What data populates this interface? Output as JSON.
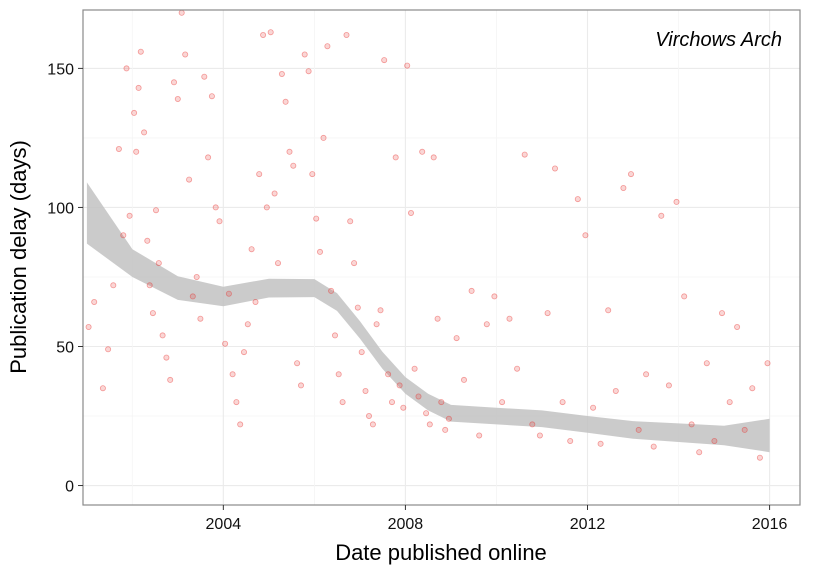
{
  "chart_data": {
    "type": "scatter",
    "title": "",
    "annotation": "Virchows Arch",
    "xlabel": "Date published online",
    "ylabel": "Publication delay (days)",
    "xlim": [
      "2000-12-01",
      "2016-09-01"
    ],
    "ylim": [
      -7,
      171
    ],
    "x_ticks": [
      {
        "date": "2004-01-01",
        "label": "2004"
      },
      {
        "date": "2008-01-01",
        "label": "2008"
      },
      {
        "date": "2012-01-01",
        "label": "2012"
      },
      {
        "date": "2016-01-01",
        "label": "2016"
      }
    ],
    "y_ticks": [
      0,
      50,
      100,
      150
    ],
    "grid": true,
    "colors": {
      "points": "#e8302f",
      "smooth_band": "#c2c2c2",
      "grid": "#ebebeb",
      "panel_border": "#8a8a8a"
    },
    "series": [
      {
        "kind": "points",
        "points": [
          [
            "2001-01-15",
            57
          ],
          [
            "2001-03-01",
            66
          ],
          [
            "2001-05-10",
            35
          ],
          [
            "2001-06-20",
            49
          ],
          [
            "2001-08-01",
            72
          ],
          [
            "2001-09-15",
            121
          ],
          [
            "2001-10-20",
            90
          ],
          [
            "2001-11-15",
            150
          ],
          [
            "2001-12-10",
            97
          ],
          [
            "2002-01-15",
            134
          ],
          [
            "2002-02-01",
            120
          ],
          [
            "2002-02-20",
            143
          ],
          [
            "2002-03-10",
            156
          ],
          [
            "2002-04-05",
            127
          ],
          [
            "2002-05-01",
            88
          ],
          [
            "2002-05-20",
            72
          ],
          [
            "2002-06-15",
            62
          ],
          [
            "2002-07-10",
            99
          ],
          [
            "2002-08-01",
            80
          ],
          [
            "2002-09-01",
            54
          ],
          [
            "2002-10-01",
            46
          ],
          [
            "2002-11-01",
            38
          ],
          [
            "2002-12-01",
            145
          ],
          [
            "2003-01-01",
            139
          ],
          [
            "2003-02-01",
            170
          ],
          [
            "2003-03-01",
            155
          ],
          [
            "2003-04-01",
            110
          ],
          [
            "2003-05-01",
            68
          ],
          [
            "2003-06-01",
            75
          ],
          [
            "2003-07-01",
            60
          ],
          [
            "2003-08-01",
            147
          ],
          [
            "2003-09-01",
            118
          ],
          [
            "2003-10-01",
            140
          ],
          [
            "2003-11-01",
            100
          ],
          [
            "2003-12-01",
            95
          ],
          [
            "2004-01-15",
            51
          ],
          [
            "2004-02-15",
            69
          ],
          [
            "2004-03-15",
            40
          ],
          [
            "2004-04-15",
            30
          ],
          [
            "2004-05-15",
            22
          ],
          [
            "2004-06-15",
            48
          ],
          [
            "2004-07-15",
            58
          ],
          [
            "2004-08-15",
            85
          ],
          [
            "2004-09-15",
            66
          ],
          [
            "2004-10-15",
            112
          ],
          [
            "2004-11-15",
            162
          ],
          [
            "2004-12-15",
            100
          ],
          [
            "2005-01-15",
            163
          ],
          [
            "2005-02-15",
            105
          ],
          [
            "2005-03-15",
            80
          ],
          [
            "2005-04-15",
            148
          ],
          [
            "2005-05-15",
            138
          ],
          [
            "2005-06-15",
            120
          ],
          [
            "2005-07-15",
            115
          ],
          [
            "2005-08-15",
            44
          ],
          [
            "2005-09-15",
            36
          ],
          [
            "2005-10-15",
            155
          ],
          [
            "2005-11-15",
            149
          ],
          [
            "2005-12-15",
            112
          ],
          [
            "2006-01-15",
            96
          ],
          [
            "2006-02-15",
            84
          ],
          [
            "2006-03-15",
            125
          ],
          [
            "2006-04-15",
            158
          ],
          [
            "2006-05-15",
            70
          ],
          [
            "2006-06-15",
            54
          ],
          [
            "2006-07-15",
            40
          ],
          [
            "2006-08-15",
            30
          ],
          [
            "2006-09-15",
            162
          ],
          [
            "2006-10-15",
            95
          ],
          [
            "2006-11-15",
            80
          ],
          [
            "2006-12-15",
            64
          ],
          [
            "2007-01-15",
            48
          ],
          [
            "2007-02-15",
            34
          ],
          [
            "2007-03-15",
            25
          ],
          [
            "2007-04-15",
            22
          ],
          [
            "2007-05-15",
            58
          ],
          [
            "2007-06-15",
            63
          ],
          [
            "2007-07-15",
            153
          ],
          [
            "2007-08-15",
            40
          ],
          [
            "2007-09-15",
            30
          ],
          [
            "2007-10-15",
            118
          ],
          [
            "2007-11-15",
            36
          ],
          [
            "2007-12-15",
            28
          ],
          [
            "2008-01-15",
            151
          ],
          [
            "2008-02-15",
            98
          ],
          [
            "2008-03-15",
            42
          ],
          [
            "2008-04-15",
            32
          ],
          [
            "2008-05-15",
            120
          ],
          [
            "2008-06-15",
            26
          ],
          [
            "2008-07-15",
            22
          ],
          [
            "2008-08-15",
            118
          ],
          [
            "2008-09-15",
            60
          ],
          [
            "2008-10-15",
            30
          ],
          [
            "2008-11-15",
            20
          ],
          [
            "2008-12-15",
            24
          ],
          [
            "2009-02-15",
            53
          ],
          [
            "2009-04-15",
            38
          ],
          [
            "2009-06-15",
            70
          ],
          [
            "2009-08-15",
            18
          ],
          [
            "2009-10-15",
            58
          ],
          [
            "2009-12-15",
            68
          ],
          [
            "2010-02-15",
            30
          ],
          [
            "2010-04-15",
            60
          ],
          [
            "2010-06-15",
            42
          ],
          [
            "2010-08-15",
            119
          ],
          [
            "2010-10-15",
            22
          ],
          [
            "2010-12-15",
            18
          ],
          [
            "2011-02-15",
            62
          ],
          [
            "2011-04-15",
            114
          ],
          [
            "2011-06-15",
            30
          ],
          [
            "2011-08-15",
            16
          ],
          [
            "2011-10-15",
            103
          ],
          [
            "2011-12-15",
            90
          ],
          [
            "2012-02-15",
            28
          ],
          [
            "2012-04-15",
            15
          ],
          [
            "2012-06-15",
            63
          ],
          [
            "2012-08-15",
            34
          ],
          [
            "2012-10-15",
            107
          ],
          [
            "2012-12-15",
            112
          ],
          [
            "2013-02-15",
            20
          ],
          [
            "2013-04-15",
            40
          ],
          [
            "2013-06-15",
            14
          ],
          [
            "2013-08-15",
            97
          ],
          [
            "2013-10-15",
            36
          ],
          [
            "2013-12-15",
            102
          ],
          [
            "2014-02-15",
            68
          ],
          [
            "2014-04-15",
            22
          ],
          [
            "2014-06-15",
            12
          ],
          [
            "2014-08-15",
            44
          ],
          [
            "2014-10-15",
            16
          ],
          [
            "2014-12-15",
            62
          ],
          [
            "2015-02-15",
            30
          ],
          [
            "2015-04-15",
            57
          ],
          [
            "2015-06-15",
            20
          ],
          [
            "2015-08-15",
            35
          ],
          [
            "2015-10-15",
            10
          ],
          [
            "2015-12-15",
            44
          ]
        ]
      },
      {
        "kind": "smooth",
        "fit": [
          [
            "2001-01-01",
            98
          ],
          [
            "2002-01-01",
            80
          ],
          [
            "2003-01-01",
            71
          ],
          [
            "2004-01-01",
            68
          ],
          [
            "2005-01-01",
            71
          ],
          [
            "2006-01-01",
            71
          ],
          [
            "2006-07-01",
            66
          ],
          [
            "2007-01-01",
            56
          ],
          [
            "2007-07-01",
            45
          ],
          [
            "2008-01-01",
            36
          ],
          [
            "2008-07-01",
            30
          ],
          [
            "2009-01-01",
            26
          ],
          [
            "2010-01-01",
            25
          ],
          [
            "2011-01-01",
            24
          ],
          [
            "2012-01-01",
            22
          ],
          [
            "2013-01-01",
            20
          ],
          [
            "2014-01-01",
            19
          ],
          [
            "2015-01-01",
            18
          ],
          [
            "2016-01-01",
            18
          ]
        ],
        "band_halfwidth": [
          [
            "2001-01-01",
            11
          ],
          [
            "2002-01-01",
            5
          ],
          [
            "2004-01-01",
            3.5
          ],
          [
            "2008-01-01",
            3
          ],
          [
            "2012-01-01",
            3
          ],
          [
            "2015-01-01",
            3.5
          ],
          [
            "2016-01-01",
            6
          ]
        ]
      }
    ]
  }
}
